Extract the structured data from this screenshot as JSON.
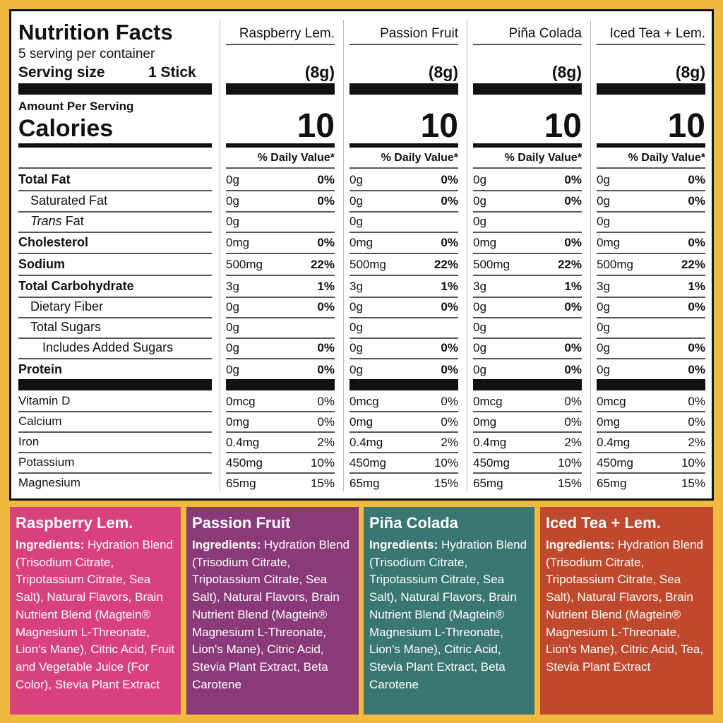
{
  "label": {
    "title": "Nutrition Facts",
    "servings": "5 serving per container",
    "serving_size_label": "Serving size",
    "serving_size": "1 Stick",
    "amount_per_serving": "Amount Per Serving",
    "calories_label": "Calories",
    "daily_value_header": "% Daily Value*",
    "nutrients": [
      {
        "name": "Total Fat",
        "style": "bold"
      },
      {
        "name": "Saturated Fat",
        "style": "indent"
      },
      {
        "italic": "Trans",
        "name": "Fat",
        "style": "indent"
      },
      {
        "name": "Cholesterol",
        "style": "bold"
      },
      {
        "name": "Sodium",
        "style": "bold"
      },
      {
        "name": "Total Carbohydrate",
        "style": "bold"
      },
      {
        "name": "Dietary Fiber",
        "style": "indent"
      },
      {
        "name": "Total Sugars",
        "style": "indent"
      },
      {
        "name": "Includes Added Sugars",
        "style": "indent2"
      },
      {
        "name": "Protein",
        "style": "bold"
      }
    ],
    "vitamins": [
      "Vitamin D",
      "Calcium",
      "Iron",
      "Potassium",
      "Magnesium"
    ],
    "products": [
      {
        "name": "Raspberry Lem.",
        "serving": "(8g)",
        "calories": 10,
        "nutrients": [
          {
            "amount": "0g",
            "dv": "0%"
          },
          {
            "amount": "0g",
            "dv": "0%"
          },
          {
            "amount": "0g"
          },
          {
            "amount": "0mg",
            "dv": "0%"
          },
          {
            "amount": "500mg",
            "dv": "22%"
          },
          {
            "amount": "3g",
            "dv": "1%"
          },
          {
            "amount": "0g",
            "dv": "0%"
          },
          {
            "amount": "0g"
          },
          {
            "amount": "0g",
            "dv": "0%"
          },
          {
            "amount": "0g",
            "dv": "0%"
          }
        ],
        "vitamins": [
          {
            "amount": "0mcg",
            "dv": "0%"
          },
          {
            "amount": "0mg",
            "dv": "0%"
          },
          {
            "amount": "0.4mg",
            "dv": "2%"
          },
          {
            "amount": "450mg",
            "dv": "10%"
          },
          {
            "amount": "65mg",
            "dv": "15%"
          }
        ]
      },
      {
        "name": "Passion Fruit",
        "serving": "(8g)",
        "calories": 10,
        "nutrients": [
          {
            "amount": "0g",
            "dv": "0%"
          },
          {
            "amount": "0g",
            "dv": "0%"
          },
          {
            "amount": "0g"
          },
          {
            "amount": "0mg",
            "dv": "0%"
          },
          {
            "amount": "500mg",
            "dv": "22%"
          },
          {
            "amount": "3g",
            "dv": "1%"
          },
          {
            "amount": "0g",
            "dv": "0%"
          },
          {
            "amount": "0g"
          },
          {
            "amount": "0g",
            "dv": "0%"
          },
          {
            "amount": "0g",
            "dv": "0%"
          }
        ],
        "vitamins": [
          {
            "amount": "0mcg",
            "dv": "0%"
          },
          {
            "amount": "0mg",
            "dv": "0%"
          },
          {
            "amount": "0.4mg",
            "dv": "2%"
          },
          {
            "amount": "450mg",
            "dv": "10%"
          },
          {
            "amount": "65mg",
            "dv": "15%"
          }
        ]
      },
      {
        "name": "Piña Colada",
        "serving": "(8g)",
        "calories": 10,
        "nutrients": [
          {
            "amount": "0g",
            "dv": "0%"
          },
          {
            "amount": "0g",
            "dv": "0%"
          },
          {
            "amount": "0g"
          },
          {
            "amount": "0mg",
            "dv": "0%"
          },
          {
            "amount": "500mg",
            "dv": "22%"
          },
          {
            "amount": "3g",
            "dv": "1%"
          },
          {
            "amount": "0g",
            "dv": "0%"
          },
          {
            "amount": "0g"
          },
          {
            "amount": "0g",
            "dv": "0%"
          },
          {
            "amount": "0g",
            "dv": "0%"
          }
        ],
        "vitamins": [
          {
            "amount": "0mcg",
            "dv": "0%"
          },
          {
            "amount": "0mg",
            "dv": "0%"
          },
          {
            "amount": "0.4mg",
            "dv": "2%"
          },
          {
            "amount": "450mg",
            "dv": "10%"
          },
          {
            "amount": "65mg",
            "dv": "15%"
          }
        ]
      },
      {
        "name": "Iced Tea + Lem.",
        "serving": "(8g)",
        "calories": 10,
        "nutrients": [
          {
            "amount": "0g",
            "dv": "0%"
          },
          {
            "amount": "0g",
            "dv": "0%"
          },
          {
            "amount": "0g"
          },
          {
            "amount": "0mg",
            "dv": "0%"
          },
          {
            "amount": "500mg",
            "dv": "22%"
          },
          {
            "amount": "3g",
            "dv": "1%"
          },
          {
            "amount": "0g",
            "dv": "0%"
          },
          {
            "amount": "0g"
          },
          {
            "amount": "0g",
            "dv": "0%"
          },
          {
            "amount": "0g",
            "dv": "0%"
          }
        ],
        "vitamins": [
          {
            "amount": "0mcg",
            "dv": "0%"
          },
          {
            "amount": "0mg",
            "dv": "0%"
          },
          {
            "amount": "0.4mg",
            "dv": "2%"
          },
          {
            "amount": "450mg",
            "dv": "10%"
          },
          {
            "amount": "65mg",
            "dv": "15%"
          }
        ]
      }
    ]
  },
  "ingredients": [
    {
      "name": "Raspberry Lem.",
      "color": "#d9407e",
      "label": "Ingredients:",
      "text": "Hydration Blend (Trisodium Citrate, Tripotassium Citrate, Sea Salt), Natural Flavors, Brain Nutrient Blend (Magtein® Magnesium L-Threonate, Lion's Mane), Citric Acid, Fruit and Vegetable Juice (For Color), Stevia Plant Extract"
    },
    {
      "name": "Passion Fruit",
      "color": "#8a3a78",
      "label": "Ingredients:",
      "text": "Hydration Blend (Trisodium Citrate, Tripotassium Citrate, Sea Salt), Natural Flavors, Brain Nutrient Blend (Magtein® Magnesium L-Threonate, Lion's Mane), Citric Acid, Stevia Plant Extract, Beta Carotene"
    },
    {
      "name": "Piña Colada",
      "color": "#3a7672",
      "label": "Ingredients:",
      "text": "Hydration Blend (Trisodium Citrate, Tripotassium Citrate, Sea Salt), Natural Flavors, Brain Nutrient Blend (Magtein® Magnesium L-Threonate, Lion's Mane), Citric Acid, Stevia Plant Extract, Beta Carotene"
    },
    {
      "name": "Iced Tea + Lem.",
      "color": "#c0482c",
      "label": "Ingredients:",
      "text": "Hydration Blend (Trisodium Citrate, Tripotassium Citrate, Sea Salt), Natural Flavors, Brain Nutrient Blend (Magtein® Magnesium L-Threonate, Lion's Mane), Citric Acid, Tea, Stevia Plant Extract"
    }
  ]
}
